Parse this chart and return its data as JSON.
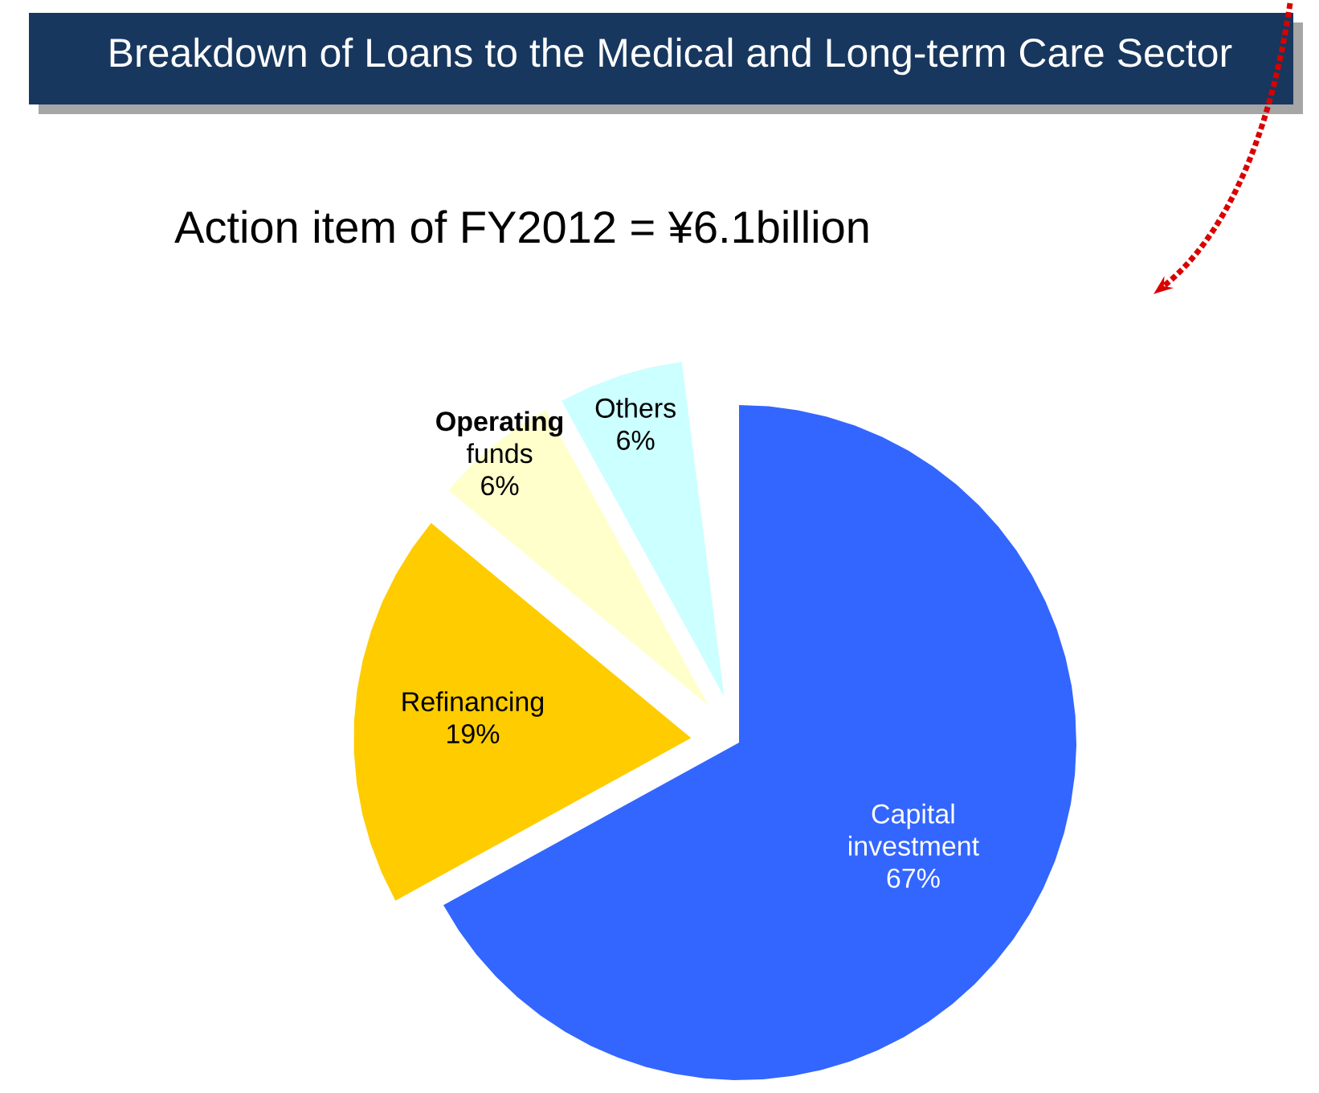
{
  "chart_data": {
    "type": "pie",
    "title": "Breakdown of Loans to the Medical and Long-term Care Sector",
    "subtitle": "Action item of FY2012 = ¥6.1billion",
    "categories": [
      "Capital investment",
      "Refinancing",
      "**Operating** funds",
      "Others"
    ],
    "values": [
      67,
      19,
      6,
      6
    ],
    "value_labels": [
      "67%",
      "19%",
      "6%",
      "6%"
    ],
    "colors": [
      "#3366ff",
      "#ffcc00",
      "#ffffcc",
      "#ccffff"
    ]
  }
}
